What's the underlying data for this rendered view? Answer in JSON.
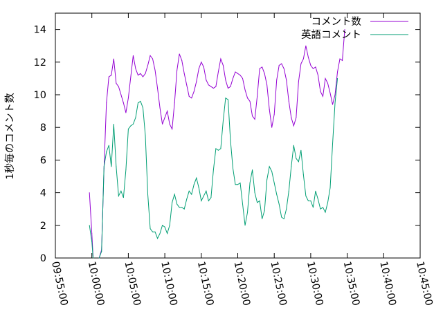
{
  "chart_data": {
    "type": "line",
    "ylabel": "1秒毎のコメント数",
    "xlabel": "",
    "xlim": [
      "09:55:00",
      "10:45:00"
    ],
    "ylim": [
      0,
      15
    ],
    "x_ticks": [
      "09:55:00",
      "10:00:00",
      "10:05:00",
      "10:10:00",
      "10:15:00",
      "10:20:00",
      "10:25:00",
      "10:30:00",
      "10:35:00",
      "10:40:00",
      "10:45:00"
    ],
    "y_ticks": [
      0,
      2,
      4,
      6,
      8,
      10,
      12,
      14
    ],
    "grid": false,
    "legend_position": "top-right",
    "series": [
      {
        "name": "コメント数",
        "color": "#9400d3",
        "points": [
          [
            "09:59:40",
            4.0
          ],
          [
            "10:00:00",
            1.5
          ],
          [
            "10:00:10",
            0.1
          ],
          [
            "10:00:20",
            null
          ],
          [
            "10:01:00",
            0.0
          ],
          [
            "10:01:20",
            0.5
          ],
          [
            "10:01:40",
            5.5
          ],
          [
            "10:02:00",
            9.5
          ],
          [
            "10:02:20",
            11.1
          ],
          [
            "10:02:40",
            11.2
          ],
          [
            "10:03:00",
            12.2
          ],
          [
            "10:03:20",
            10.7
          ],
          [
            "10:03:40",
            10.5
          ],
          [
            "10:04:00",
            10.0
          ],
          [
            "10:04:20",
            9.5
          ],
          [
            "10:04:40",
            8.9
          ],
          [
            "10:05:00",
            9.8
          ],
          [
            "10:05:20",
            11.1
          ],
          [
            "10:05:40",
            12.4
          ],
          [
            "10:06:00",
            11.6
          ],
          [
            "10:06:20",
            11.2
          ],
          [
            "10:06:40",
            11.3
          ],
          [
            "10:07:00",
            11.1
          ],
          [
            "10:07:20",
            11.3
          ],
          [
            "10:07:40",
            11.8
          ],
          [
            "10:08:00",
            12.4
          ],
          [
            "10:08:20",
            12.2
          ],
          [
            "10:08:40",
            11.5
          ],
          [
            "10:09:00",
            10.4
          ],
          [
            "10:09:20",
            9.2
          ],
          [
            "10:09:40",
            8.2
          ],
          [
            "10:10:00",
            8.6
          ],
          [
            "10:10:20",
            9.0
          ],
          [
            "10:10:40",
            8.2
          ],
          [
            "10:11:00",
            7.9
          ],
          [
            "10:11:20",
            9.5
          ],
          [
            "10:11:40",
            11.5
          ],
          [
            "10:12:00",
            12.5
          ],
          [
            "10:12:20",
            12.1
          ],
          [
            "10:12:40",
            11.3
          ],
          [
            "10:13:00",
            10.6
          ],
          [
            "10:13:20",
            9.9
          ],
          [
            "10:13:40",
            9.8
          ],
          [
            "10:14:00",
            10.2
          ],
          [
            "10:14:20",
            10.8
          ],
          [
            "10:14:40",
            11.6
          ],
          [
            "10:15:00",
            12.0
          ],
          [
            "10:15:20",
            11.7
          ],
          [
            "10:15:40",
            10.9
          ],
          [
            "10:16:00",
            10.6
          ],
          [
            "10:16:20",
            10.5
          ],
          [
            "10:16:40",
            10.4
          ],
          [
            "10:17:00",
            10.5
          ],
          [
            "10:17:20",
            11.4
          ],
          [
            "10:17:40",
            12.2
          ],
          [
            "10:18:00",
            11.8
          ],
          [
            "10:18:20",
            10.9
          ],
          [
            "10:18:40",
            10.4
          ],
          [
            "10:19:00",
            10.5
          ],
          [
            "10:19:20",
            11.0
          ],
          [
            "10:19:40",
            11.4
          ],
          [
            "10:20:00",
            11.3
          ],
          [
            "10:20:20",
            11.2
          ],
          [
            "10:20:40",
            11.0
          ],
          [
            "10:21:00",
            10.3
          ],
          [
            "10:21:20",
            9.8
          ],
          [
            "10:21:40",
            9.6
          ],
          [
            "10:22:00",
            8.7
          ],
          [
            "10:22:20",
            8.5
          ],
          [
            "10:22:40",
            9.9
          ],
          [
            "10:23:00",
            11.6
          ],
          [
            "10:23:20",
            11.7
          ],
          [
            "10:23:40",
            11.3
          ],
          [
            "10:24:00",
            10.6
          ],
          [
            "10:24:20",
            9.1
          ],
          [
            "10:24:40",
            8.0
          ],
          [
            "10:25:00",
            8.8
          ],
          [
            "10:25:20",
            10.9
          ],
          [
            "10:25:40",
            11.8
          ],
          [
            "10:26:00",
            11.9
          ],
          [
            "10:26:20",
            11.6
          ],
          [
            "10:26:40",
            10.9
          ],
          [
            "10:27:00",
            9.6
          ],
          [
            "10:27:20",
            8.6
          ],
          [
            "10:27:40",
            8.1
          ],
          [
            "10:28:00",
            8.6
          ],
          [
            "10:28:20",
            10.8
          ],
          [
            "10:28:40",
            11.9
          ],
          [
            "10:29:00",
            12.2
          ],
          [
            "10:29:20",
            13.0
          ],
          [
            "10:29:40",
            12.3
          ],
          [
            "10:30:00",
            11.8
          ],
          [
            "10:30:20",
            11.6
          ],
          [
            "10:30:40",
            11.7
          ],
          [
            "10:31:00",
            11.2
          ],
          [
            "10:31:20",
            10.2
          ],
          [
            "10:31:40",
            9.9
          ],
          [
            "10:32:00",
            11.0
          ],
          [
            "10:32:20",
            10.7
          ],
          [
            "10:32:40",
            10.1
          ],
          [
            "10:33:00",
            9.4
          ],
          [
            "10:33:20",
            10.0
          ],
          [
            "10:33:40",
            11.4
          ],
          [
            "10:34:00",
            12.2
          ],
          [
            "10:34:20",
            12.1
          ],
          [
            "10:34:40",
            14.0
          ]
        ]
      },
      {
        "name": "英語コメント",
        "color": "#009e73",
        "points": [
          [
            "09:59:40",
            2.0
          ],
          [
            "10:00:00",
            1.0
          ],
          [
            "10:00:10",
            0.0
          ],
          [
            "10:00:20",
            null
          ],
          [
            "10:01:00",
            0.0
          ],
          [
            "10:01:20",
            0.4
          ],
          [
            "10:01:40",
            5.6
          ],
          [
            "10:02:00",
            6.5
          ],
          [
            "10:02:20",
            6.9
          ],
          [
            "10:02:40",
            5.6
          ],
          [
            "10:03:00",
            8.2
          ],
          [
            "10:03:20",
            5.6
          ],
          [
            "10:03:40",
            3.8
          ],
          [
            "10:04:00",
            4.1
          ],
          [
            "10:04:20",
            3.7
          ],
          [
            "10:04:40",
            5.4
          ],
          [
            "10:05:00",
            7.9
          ],
          [
            "10:05:20",
            8.1
          ],
          [
            "10:05:40",
            8.2
          ],
          [
            "10:06:00",
            8.6
          ],
          [
            "10:06:20",
            9.5
          ],
          [
            "10:06:40",
            9.6
          ],
          [
            "10:07:00",
            9.2
          ],
          [
            "10:07:20",
            7.5
          ],
          [
            "10:07:40",
            3.9
          ],
          [
            "10:08:00",
            1.8
          ],
          [
            "10:08:20",
            1.6
          ],
          [
            "10:08:40",
            1.6
          ],
          [
            "10:09:00",
            1.2
          ],
          [
            "10:09:20",
            1.5
          ],
          [
            "10:09:40",
            2.0
          ],
          [
            "10:10:00",
            1.9
          ],
          [
            "10:10:20",
            1.5
          ],
          [
            "10:10:40",
            2.0
          ],
          [
            "10:11:00",
            3.4
          ],
          [
            "10:11:20",
            3.9
          ],
          [
            "10:11:40",
            3.3
          ],
          [
            "10:12:00",
            3.1
          ],
          [
            "10:12:20",
            3.1
          ],
          [
            "10:12:40",
            3.0
          ],
          [
            "10:13:00",
            3.6
          ],
          [
            "10:13:20",
            4.1
          ],
          [
            "10:13:40",
            3.9
          ],
          [
            "10:14:00",
            4.5
          ],
          [
            "10:14:20",
            4.9
          ],
          [
            "10:14:40",
            4.3
          ],
          [
            "10:15:00",
            3.5
          ],
          [
            "10:15:20",
            3.8
          ],
          [
            "10:15:40",
            4.1
          ],
          [
            "10:16:00",
            3.5
          ],
          [
            "10:16:20",
            3.7
          ],
          [
            "10:16:40",
            5.4
          ],
          [
            "10:17:00",
            6.7
          ],
          [
            "10:17:20",
            6.6
          ],
          [
            "10:17:40",
            6.7
          ],
          [
            "10:18:00",
            8.4
          ],
          [
            "10:18:20",
            9.8
          ],
          [
            "10:18:40",
            9.7
          ],
          [
            "10:19:00",
            7.2
          ],
          [
            "10:19:20",
            5.5
          ],
          [
            "10:19:40",
            4.5
          ],
          [
            "10:20:00",
            4.5
          ],
          [
            "10:20:20",
            4.6
          ],
          [
            "10:20:40",
            3.3
          ],
          [
            "10:21:00",
            2.0
          ],
          [
            "10:21:20",
            2.8
          ],
          [
            "10:21:40",
            4.6
          ],
          [
            "10:22:00",
            5.4
          ],
          [
            "10:22:20",
            4.0
          ],
          [
            "10:22:40",
            3.4
          ],
          [
            "10:23:00",
            3.5
          ],
          [
            "10:23:20",
            2.4
          ],
          [
            "10:23:40",
            2.9
          ],
          [
            "10:24:00",
            4.8
          ],
          [
            "10:24:20",
            5.6
          ],
          [
            "10:24:40",
            5.3
          ],
          [
            "10:25:00",
            4.6
          ],
          [
            "10:25:20",
            3.9
          ],
          [
            "10:25:40",
            3.3
          ],
          [
            "10:26:00",
            2.5
          ],
          [
            "10:26:20",
            2.4
          ],
          [
            "10:26:40",
            3.0
          ],
          [
            "10:27:00",
            4.1
          ],
          [
            "10:27:20",
            5.6
          ],
          [
            "10:27:40",
            6.9
          ],
          [
            "10:28:00",
            6.1
          ],
          [
            "10:28:20",
            5.9
          ],
          [
            "10:28:40",
            6.6
          ],
          [
            "10:29:00",
            5.1
          ],
          [
            "10:29:20",
            3.8
          ],
          [
            "10:29:40",
            3.5
          ],
          [
            "10:30:00",
            3.5
          ],
          [
            "10:30:20",
            3.1
          ],
          [
            "10:30:40",
            4.1
          ],
          [
            "10:31:00",
            3.6
          ],
          [
            "10:31:20",
            3.0
          ],
          [
            "10:31:40",
            3.1
          ],
          [
            "10:32:00",
            2.8
          ],
          [
            "10:32:20",
            3.4
          ],
          [
            "10:32:40",
            4.3
          ],
          [
            "10:33:00",
            7.0
          ],
          [
            "10:33:20",
            9.5
          ],
          [
            "10:33:40",
            11.0
          ]
        ]
      }
    ]
  }
}
